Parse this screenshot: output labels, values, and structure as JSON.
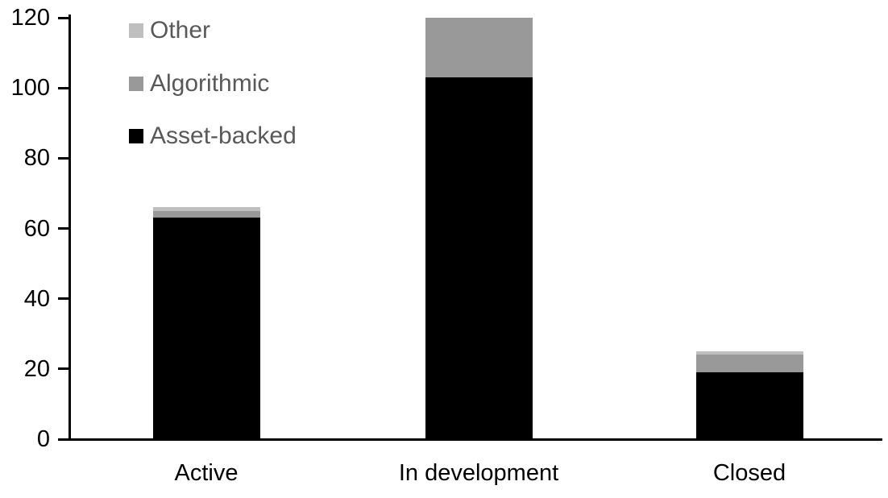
{
  "chart_data": {
    "type": "bar",
    "stacked": true,
    "title": "",
    "xlabel": "",
    "ylabel": "",
    "categories": [
      "Active",
      "In development",
      "Closed"
    ],
    "series": [
      {
        "name": "Asset-backed",
        "color": "#000000",
        "values": [
          63,
          103,
          19
        ]
      },
      {
        "name": "Algorithmic",
        "color": "#999999",
        "values": [
          2,
          17,
          5
        ]
      },
      {
        "name": "Other",
        "color": "#bfbfbf",
        "values": [
          1,
          0,
          1
        ]
      }
    ],
    "yaxis": {
      "min": 0,
      "max": 120,
      "tick_interval": 20,
      "ticks": [
        0,
        20,
        40,
        60,
        80,
        100,
        120
      ]
    },
    "grid": false,
    "legend": {
      "position": "top-left",
      "items": [
        {
          "label": "Other",
          "color": "#bfbfbf"
        },
        {
          "label": "Algorithmic",
          "color": "#999999"
        },
        {
          "label": "Asset-backed",
          "color": "#000000"
        }
      ]
    },
    "colors": {
      "axis": "#000000",
      "axis_label_text": "#000000",
      "legend_text": "#595959",
      "background": "#ffffff"
    }
  }
}
